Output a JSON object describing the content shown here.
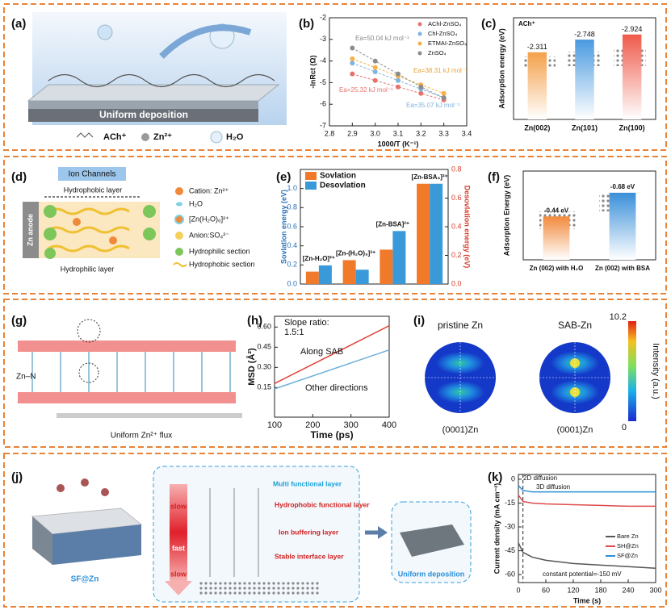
{
  "labels": [
    "(a)",
    "(b)",
    "(c)",
    "(d)",
    "(e)",
    "(f)",
    "(g)",
    "(h)",
    "(i)",
    "(j)",
    "(k)"
  ],
  "diagrams": {
    "a": {
      "deposition": "Uniform deposition",
      "legend": [
        "ACh⁺",
        "Zn²⁺",
        "H₂O"
      ]
    },
    "d": {
      "channels": "Ion Channels",
      "top": "Hydrophobic layer",
      "anode": "Zn anode",
      "bottom": "Hydrophilic layer",
      "legend": [
        "Cation: Zn²⁺",
        "H₂O",
        "[Zn(H₂O)₆]²⁺",
        "Anion:SO₄²⁻",
        "Hydrophilic section",
        "Hydrophobic section"
      ]
    },
    "g": {
      "bond": "Zn–N",
      "flux": "Uniform Zn²⁺ flux"
    },
    "i": {
      "titles": [
        "pristine Zn",
        "SAB-Zn"
      ],
      "facets": [
        "(0001)Zn",
        "(0001)Zn"
      ],
      "colorbar": {
        "label": "Intensity (a.u.)",
        "ticks": [
          10.2,
          0
        ]
      }
    },
    "j": {
      "speeds": [
        "slow",
        "fast",
        "slow"
      ],
      "layers": [
        "Multi functional layer",
        "Hydrophobic functional layer",
        "Ion buffering layer",
        "Stable interface layer"
      ],
      "electrode": "SF@Zn",
      "result": "Uniform deposition"
    }
  },
  "chart_data": [
    {
      "type": "scatter",
      "xlabel": "1000/T (K⁻¹)",
      "ylabel": "-lnRct (Ω)",
      "x": [
        2.9,
        3.1,
        3.2,
        3.3,
        3.0
      ],
      "xlim": [
        2.8,
        3.4
      ],
      "xticks": [
        2.8,
        2.9,
        {
          "value": 3,
          "label": "3.0"
        },
        3.1,
        3.2,
        3.3,
        3.4
      ],
      "ylim": [
        -7,
        -2
      ],
      "yticks": [
        -7,
        -6,
        -5,
        -4,
        -3,
        -2
      ],
      "series": [
        {
          "name": "AChl-ZnSO₄",
          "color": "#e8726b",
          "values": [
            -4.6,
            -5.2,
            -5.5,
            -5.8,
            -4.9
          ]
        },
        {
          "name": "Chl-ZnSO₄",
          "color": "#7fb3e0",
          "values": [
            -4.1,
            -4.9,
            -5.3,
            -5.7,
            -4.5
          ]
        },
        {
          "name": "ETMAI-ZnSO₄",
          "color": "#f5b14a",
          "values": [
            -3.9,
            -4.7,
            -5.1,
            -5.5,
            -4.3
          ]
        },
        {
          "name": "ZnSO₄",
          "color": "#8c8c8c",
          "values": [
            -3.4,
            -4.6,
            -5.2,
            -5.7,
            -4.0
          ]
        }
      ],
      "annotations": [
        "Ea=50.04 kJ mol⁻¹",
        "Ea=38.31 kJ mol⁻¹",
        "Ea=25.32 kJ mol⁻¹",
        "Ea=35.07 kJ mol⁻¹"
      ],
      "legend": "upper right"
    },
    {
      "type": "bar",
      "ylabel": "Adsorption energy (eV)",
      "annotations": [
        "ACh⁺"
      ],
      "categories": [
        "Zn(002)",
        "Zn(101)",
        "Zn(100)"
      ],
      "values": [
        -2.311,
        -2.748,
        -2.924
      ],
      "colors": [
        "#f4a04a",
        "#4a9ae0",
        "#ef5a4a"
      ],
      "ylim": [
        0,
        -3.5
      ],
      "data_labels": true
    },
    {
      "type": "bar",
      "ylabel": "Sovlation energy (eV)",
      "y2label": "Desovlation energy (eV)",
      "categories": [
        "[Zn-H₂O]²⁺",
        "[Zn-(H₂O)₃]²⁺",
        "[Zn-BSA]²⁺",
        "[Zn-BSA₃]²⁺"
      ],
      "series": [
        {
          "name": "Sovlation",
          "color": "#f07a2a",
          "values": [
            0.13,
            0.25,
            0.36,
            1.05
          ]
        },
        {
          "name": "Desovlation",
          "color": "#3a9ad9",
          "axis": "y2",
          "values": [
            0.13,
            0.1,
            0.37,
            0.7
          ]
        }
      ],
      "ylim": [
        0,
        1.2
      ],
      "yticks": [
        {
          "value": 0,
          "label": "0.0"
        },
        0.2,
        0.4,
        0.6,
        0.8,
        {
          "value": 1,
          "label": "1.0"
        }
      ],
      "y2lim": [
        0,
        0.8
      ],
      "y2ticks": [
        {
          "value": 0,
          "label": "0.0"
        },
        0.2,
        0.4,
        0.6,
        0.8
      ],
      "ycolor": "#2a6fb5",
      "y2color": "#d43b2a",
      "legend": "upper left"
    },
    {
      "type": "bar",
      "ylabel": "Adsorption Energy (eV)",
      "categories": [
        "Zn (002) with H₂O",
        "Zn (002) with BSA"
      ],
      "values": [
        -0.44,
        -0.68
      ],
      "value_labels": [
        "-0.44 eV",
        "-0.68 eV"
      ],
      "colors": [
        "#f28a3c",
        "#3a8fd9"
      ],
      "ylim": [
        0,
        -0.9
      ]
    },
    {
      "type": "line",
      "xlabel": "Time (ps)",
      "ylabel": "MSD (Å²)",
      "x": [
        100,
        400
      ],
      "xlim": [
        100,
        400
      ],
      "xticks": [
        100,
        200,
        300,
        400
      ],
      "ylim": [
        -0.07,
        0.68
      ],
      "yticks": [
        0.15,
        {
          "value": 0.3,
          "label": "0.30"
        },
        0.45,
        {
          "value": 0.6,
          "label": "0.60"
        }
      ],
      "series": [
        {
          "name": "Along SAB",
          "color": "#e0473a",
          "values": [
            0.18,
            0.61
          ]
        },
        {
          "name": "Other directions",
          "color": "#6fb0d8",
          "values": [
            0.14,
            0.43
          ]
        }
      ],
      "annotations": [
        "Slope ratio:",
        "1.5:1"
      ],
      "legend": "inline"
    },
    {
      "type": "line",
      "xlabel": "Time (s)",
      "ylabel": "Current density (mA cm⁻²)",
      "x": [
        0,
        10,
        30,
        60,
        120,
        180,
        240,
        300
      ],
      "xlim": [
        0,
        300
      ],
      "xticks": [
        0,
        60,
        120,
        180,
        240,
        300
      ],
      "ylim": [
        -65,
        3
      ],
      "yticks": [
        -60,
        -45,
        -30,
        -15,
        0
      ],
      "vline": 10,
      "series": [
        {
          "name": "Bare Zn",
          "color": "#555555",
          "values": [
            -40,
            -46,
            -49,
            -51,
            -53,
            -54,
            -55,
            -56
          ]
        },
        {
          "name": "SH@Zn",
          "color": "#e04a4a",
          "values": [
            -10,
            -14,
            -15,
            -15.5,
            -16,
            -16.5,
            -17,
            -17
          ]
        },
        {
          "name": "SF@Zn",
          "color": "#2a8fd8",
          "values": [
            -4,
            -7,
            -8,
            -8,
            -8,
            -8,
            -8,
            -8
          ]
        }
      ],
      "annotations": [
        "2D diffusion",
        "3D diffusion",
        "constant potential=-150 mV"
      ],
      "legend": "center right"
    }
  ]
}
